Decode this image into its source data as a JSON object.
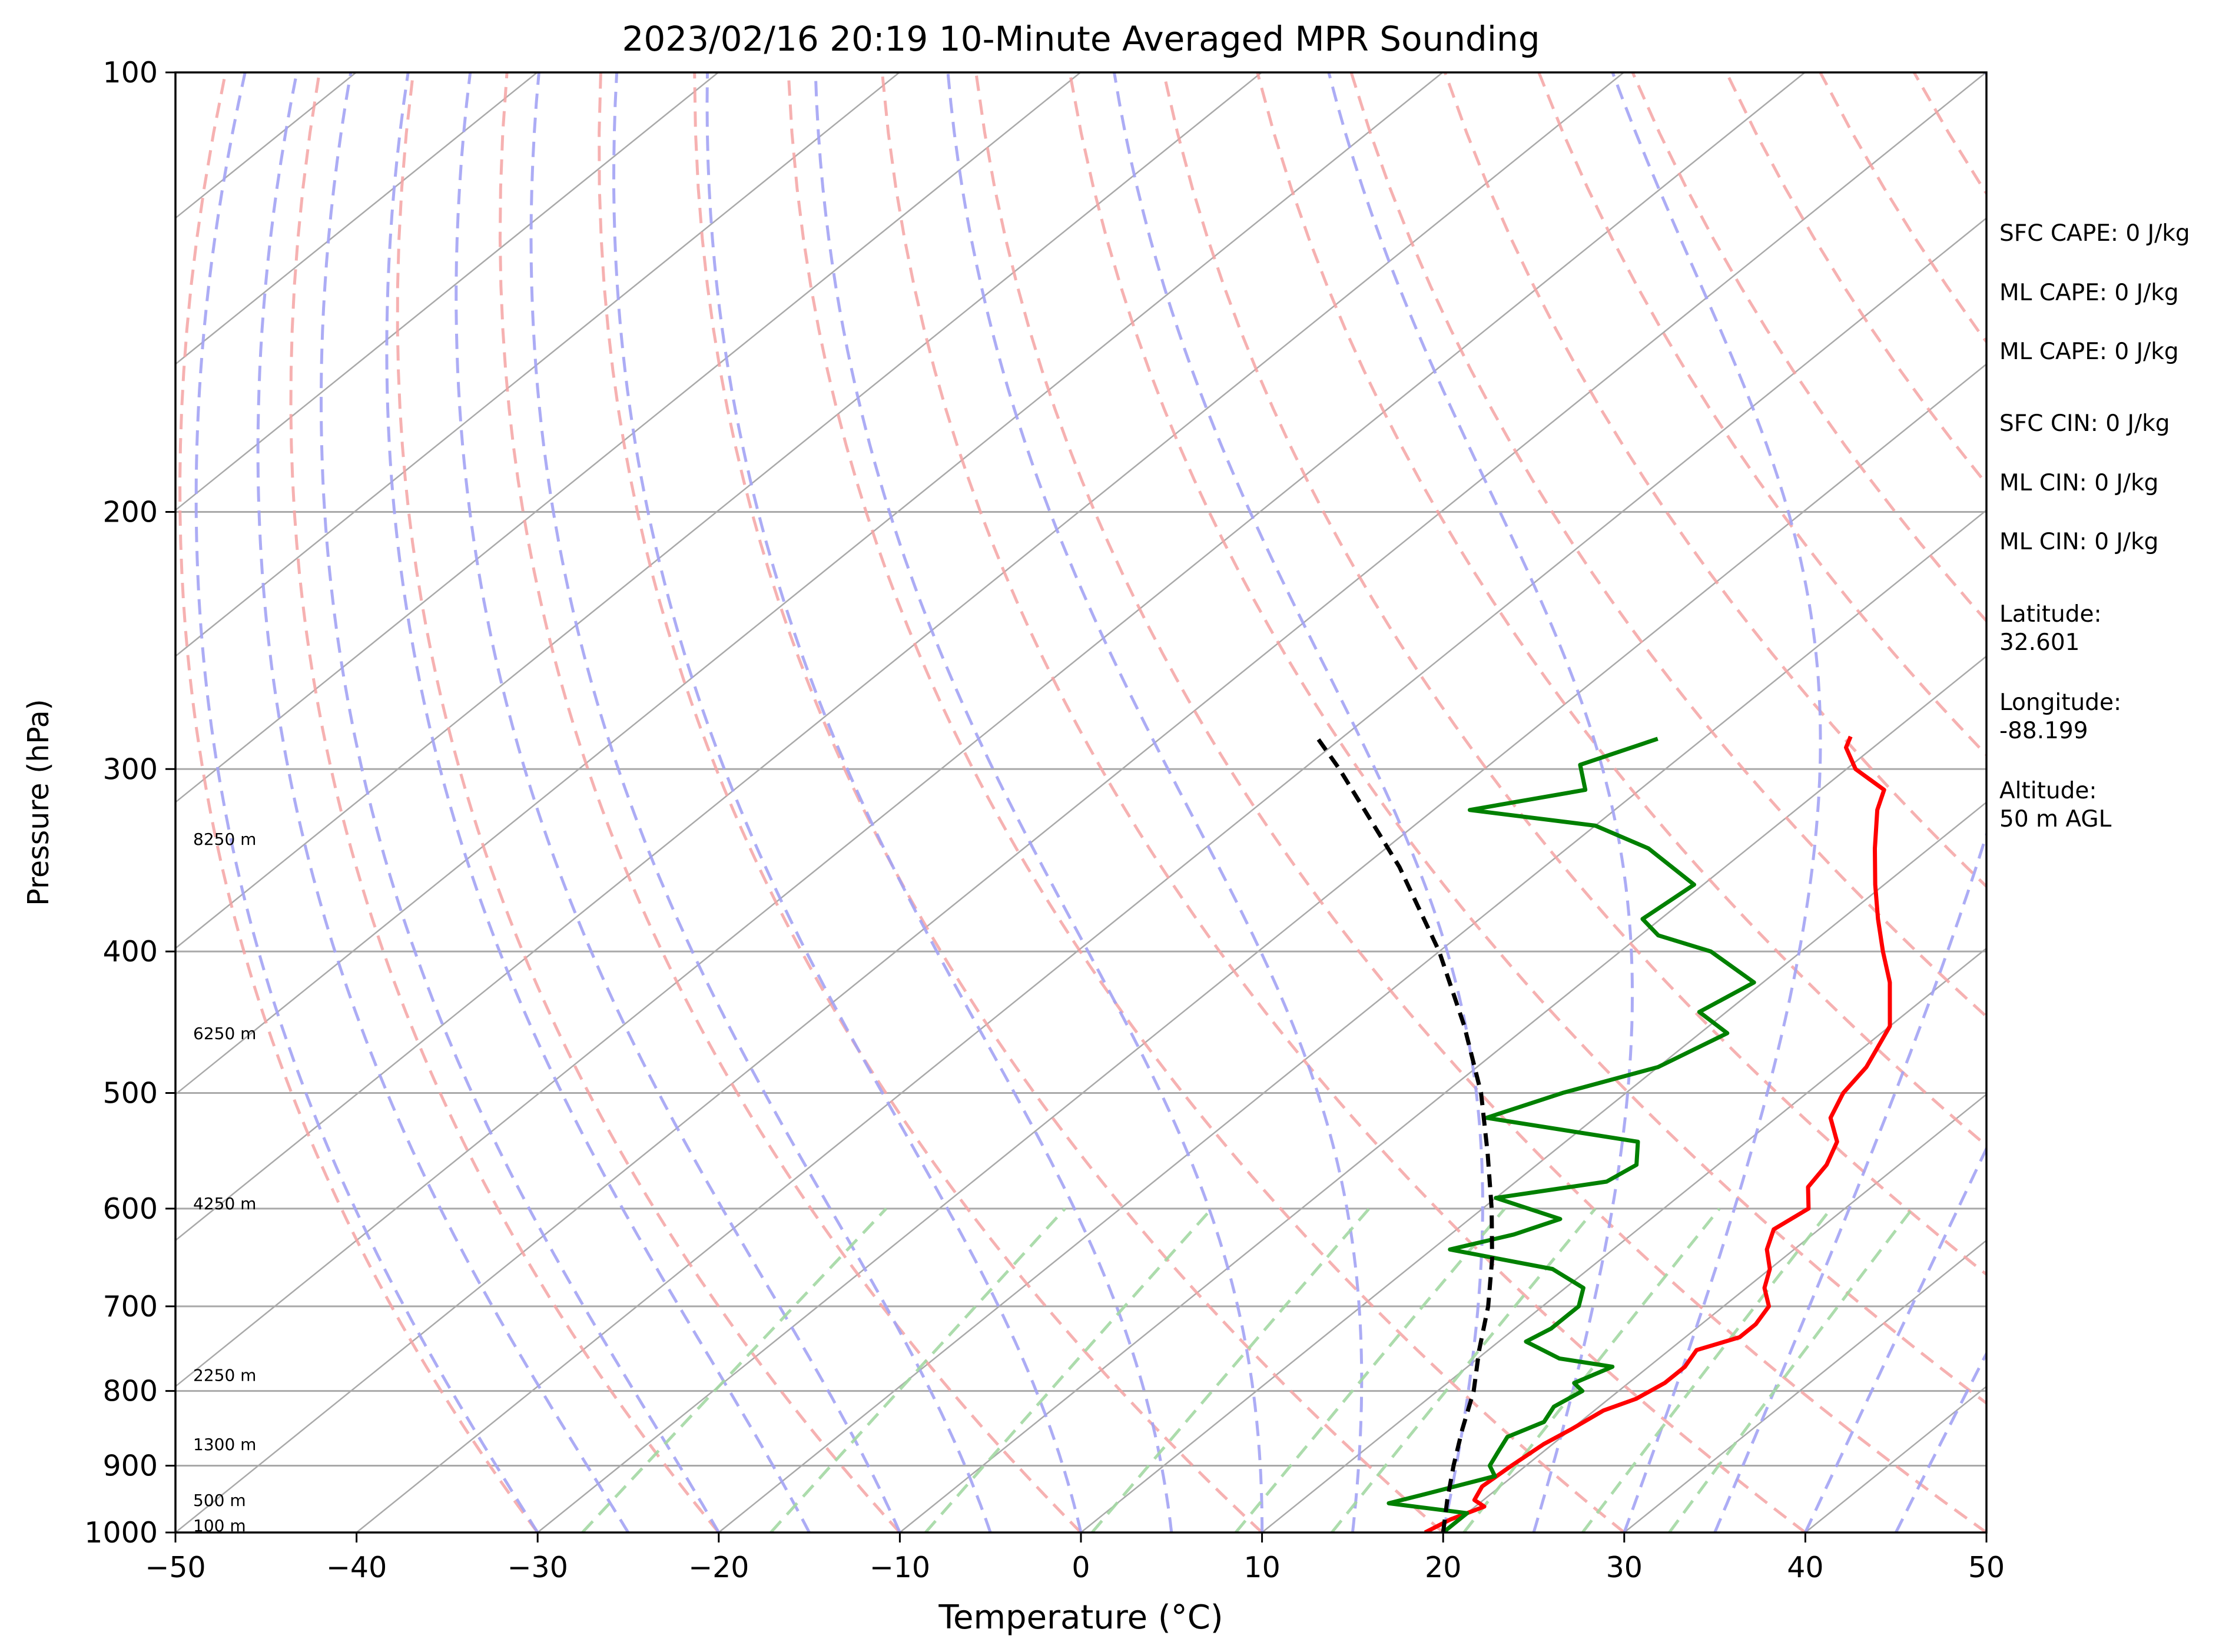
{
  "chart_data": {
    "type": "line",
    "title": "2023/02/16 20:19 10-Minute Averaged MPR Sounding",
    "xlabel": "Temperature (°C)",
    "ylabel": "Pressure (hPa)",
    "xlim": [
      -50,
      50
    ],
    "ylim": [
      1000,
      100
    ],
    "y_scale": "log",
    "x_ticks": [
      "−50",
      "−40",
      "−30",
      "−20",
      "−10",
      "0",
      "10",
      "20",
      "30",
      "40",
      "50"
    ],
    "y_ticks": [
      "100",
      "200",
      "300",
      "400",
      "500",
      "600",
      "700",
      "800",
      "900",
      "1000"
    ],
    "grid": true,
    "skew": true,
    "colors": {
      "temperature": "#ff0000",
      "dewpoint": "#008000",
      "parcel": "#000000",
      "isotherm": "#a9a9a9",
      "dry_adiabat": "#f4a3a3",
      "moist_adiabat": "#a3a3f4",
      "mixing_ratio": "#a3d8a3",
      "pressure_grid": "#a9a9a9"
    },
    "height_labels": [
      {
        "text": "100 m",
        "pressure": 989
      },
      {
        "text": "500 m",
        "pressure": 950
      },
      {
        "text": "1300 m",
        "pressure": 870
      },
      {
        "text": "2250 m",
        "pressure": 780
      },
      {
        "text": "4250 m",
        "pressure": 595
      },
      {
        "text": "6250 m",
        "pressure": 455
      },
      {
        "text": "8250 m",
        "pressure": 335
      }
    ],
    "series": [
      {
        "key": "temperature",
        "points": [
          [
            1000,
            19.0
          ],
          [
            980,
            19.5
          ],
          [
            960,
            20.5
          ],
          [
            950,
            19.5
          ],
          [
            930,
            19.0
          ],
          [
            900,
            19.2
          ],
          [
            870,
            19.5
          ],
          [
            850,
            20.0
          ],
          [
            825,
            20.5
          ],
          [
            810,
            21.5
          ],
          [
            790,
            22.0
          ],
          [
            770,
            22.0
          ],
          [
            750,
            21.5
          ],
          [
            735,
            23.0
          ],
          [
            720,
            23.0
          ],
          [
            700,
            22.5
          ],
          [
            680,
            21.0
          ],
          [
            660,
            20.0
          ],
          [
            640,
            18.5
          ],
          [
            620,
            17.5
          ],
          [
            600,
            18.0
          ],
          [
            580,
            16.5
          ],
          [
            560,
            16.0
          ],
          [
            540,
            15.0
          ],
          [
            520,
            13.0
          ],
          [
            500,
            12.0
          ],
          [
            480,
            11.5
          ],
          [
            450,
            10.0
          ],
          [
            420,
            7.0
          ],
          [
            400,
            4.5
          ],
          [
            380,
            2.0
          ],
          [
            360,
            -0.5
          ],
          [
            340,
            -3.0
          ],
          [
            320,
            -5.5
          ],
          [
            310,
            -6.5
          ],
          [
            300,
            -9.5
          ],
          [
            290,
            -11.5
          ],
          [
            285,
            -12.0
          ]
        ]
      },
      {
        "key": "dewpoint",
        "points": [
          [
            1000,
            20.0
          ],
          [
            985,
            20.0
          ],
          [
            970,
            20.0
          ],
          [
            955,
            15.0
          ],
          [
            940,
            16.5
          ],
          [
            915,
            19.0
          ],
          [
            900,
            18.0
          ],
          [
            880,
            17.5
          ],
          [
            860,
            17.0
          ],
          [
            840,
            18.0
          ],
          [
            820,
            17.5
          ],
          [
            800,
            18.0
          ],
          [
            790,
            17.0
          ],
          [
            770,
            18.0
          ],
          [
            760,
            14.5
          ],
          [
            740,
            11.5
          ],
          [
            725,
            12.0
          ],
          [
            700,
            12.0
          ],
          [
            680,
            11.0
          ],
          [
            660,
            8.0
          ],
          [
            640,
            1.0
          ],
          [
            625,
            3.5
          ],
          [
            610,
            5.0
          ],
          [
            590,
            0.0
          ],
          [
            575,
            5.0
          ],
          [
            560,
            5.5
          ],
          [
            540,
            4.0
          ],
          [
            520,
            -6.0
          ],
          [
            500,
            -3.5
          ],
          [
            480,
            0.0
          ],
          [
            455,
            1.5
          ],
          [
            440,
            -1.5
          ],
          [
            420,
            -0.5
          ],
          [
            400,
            -5.0
          ],
          [
            390,
            -9.0
          ],
          [
            380,
            -11.0
          ],
          [
            360,
            -10.5
          ],
          [
            340,
            -15.5
          ],
          [
            328,
            -20.0
          ],
          [
            320,
            -28.0
          ],
          [
            310,
            -23.0
          ],
          [
            298,
            -25.0
          ],
          [
            286,
            -22.5
          ]
        ]
      },
      {
        "key": "parcel",
        "points": [
          [
            1000,
            20.0
          ],
          [
            950,
            18.0
          ],
          [
            900,
            16.0
          ],
          [
            850,
            14.0
          ],
          [
            800,
            12.0
          ],
          [
            750,
            9.5
          ],
          [
            700,
            7.0
          ],
          [
            650,
            4.0
          ],
          [
            600,
            0.5
          ],
          [
            550,
            -3.5
          ],
          [
            500,
            -8.0
          ],
          [
            450,
            -13.5
          ],
          [
            400,
            -20.0
          ],
          [
            350,
            -28.0
          ],
          [
            300,
            -38.0
          ],
          [
            285,
            -41.5
          ]
        ]
      }
    ]
  },
  "side_info": {
    "sfc_cape": "SFC CAPE: 0 J/kg",
    "ml_cape_1": "ML CAPE: 0 J/kg",
    "ml_cape_2": "ML CAPE: 0 J/kg",
    "sfc_cin": "SFC CIN: 0 J/kg",
    "ml_cin_1": "ML CIN: 0 J/kg",
    "ml_cin_2": "ML CIN: 0 J/kg",
    "latitude_label": "Latitude:",
    "latitude_value": "32.601",
    "longitude_label": "Longitude:",
    "longitude_value": "-88.199",
    "altitude_label": "Altitude:",
    "altitude_value": "50 m AGL"
  }
}
